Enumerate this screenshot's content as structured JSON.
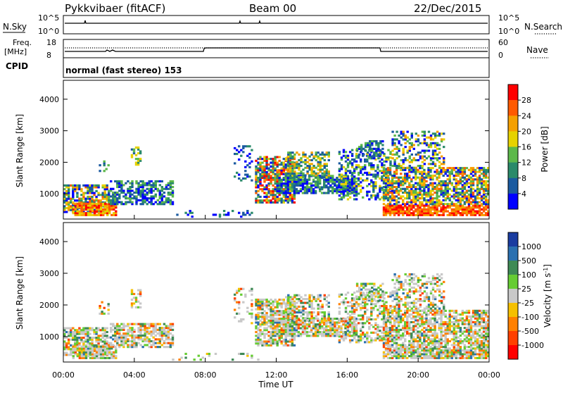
{
  "header": {
    "station": "Pykkvibaer (fitACF)",
    "beam": "Beam 00",
    "date": "22/Dec/2015"
  },
  "strip_labels": {
    "nsky": "N.Sky",
    "nsearch": "N.Search",
    "freq_line1": "Freq.",
    "freq_line2": "[MHz]",
    "nave": "Nave",
    "cpid": "CPID",
    "cpid_value": "normal (fast stereo) 153",
    "noise_left_top": "10^5",
    "noise_left_bottom": "10^0",
    "noise_right_top": "10^5",
    "noise_right_bottom": "10^0",
    "freq_left_top": "18",
    "freq_left_bottom": "8",
    "nave_right_top": "60",
    "nave_right_bottom": "0"
  },
  "chart_data": [
    {
      "type": "heatmap",
      "quantity": "Power",
      "ylabel": "Slant Range [km]",
      "xlabel": "",
      "xlim_hours": [
        0,
        24
      ],
      "ylim_km": [
        200,
        4600
      ],
      "y_ticks": [
        "1000",
        "2000",
        "3000",
        "4000"
      ],
      "colorbar": {
        "label": "Power [dB]",
        "ticks": [
          "28",
          "24",
          "20",
          "16",
          "12",
          "8",
          "4"
        ],
        "colors": [
          "#ff0000",
          "#ff5a00",
          "#f5a000",
          "#e6d200",
          "#5cb84a",
          "#2a8a6a",
          "#1a5aa0",
          "#0000ff"
        ]
      }
    },
    {
      "type": "heatmap",
      "quantity": "Velocity",
      "ylabel": "Slant Range [km]",
      "xlabel": "Time UT",
      "xlim_hours": [
        0,
        24
      ],
      "ylim_km": [
        200,
        4600
      ],
      "y_ticks": [
        "1000",
        "2000",
        "3000",
        "4000"
      ],
      "x_ticks": [
        "00:00",
        "04:00",
        "08:00",
        "12:00",
        "16:00",
        "20:00",
        "00:00"
      ],
      "colorbar": {
        "label": "Velocity [m s",
        "label_sup": "-1",
        "label_end": "]",
        "ticks": [
          "1000",
          "500",
          "100",
          "25",
          "-25",
          "-100",
          "-500",
          "-1000"
        ],
        "colors": [
          "#1a3ca0",
          "#2a70b0",
          "#3e8a55",
          "#66cc33",
          "#c8c8c8",
          "#f5c000",
          "#ff8000",
          "#ff4000",
          "#ff0000"
        ]
      }
    }
  ]
}
